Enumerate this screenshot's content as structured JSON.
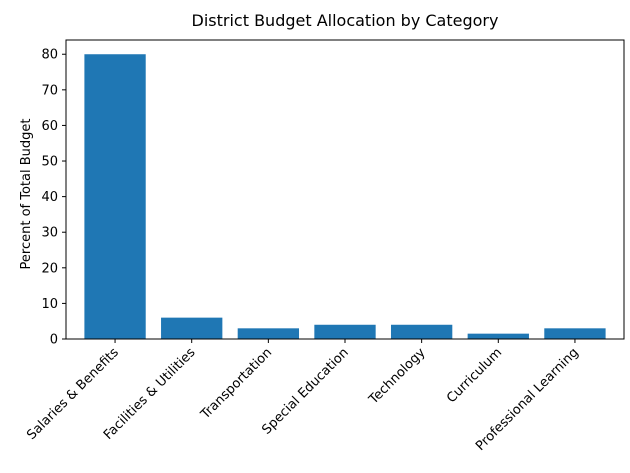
{
  "chart_data": {
    "type": "bar",
    "title": "District Budget Allocation by Category",
    "xlabel": "",
    "ylabel": "Percent of Total Budget",
    "categories": [
      "Salaries & Benefits",
      "Facilities & Utilities",
      "Transportation",
      "Special Education",
      "Technology",
      "Curriculum",
      "Professional Learning"
    ],
    "values": [
      80,
      6,
      3,
      4,
      4,
      1.5,
      3
    ],
    "ylim": [
      0,
      84
    ],
    "yticks": [
      0,
      10,
      20,
      30,
      40,
      50,
      60,
      70,
      80
    ],
    "bar_color": "#1f77b4",
    "grid": false,
    "legend": "none"
  }
}
